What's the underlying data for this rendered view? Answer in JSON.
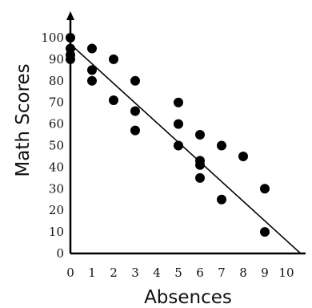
{
  "chart_data": {
    "type": "scatter",
    "xlabel": "Absences",
    "ylabel": "Math Scores",
    "xlim": [
      0,
      10
    ],
    "ylim": [
      0,
      100
    ],
    "x_ticks": [
      0,
      1,
      2,
      3,
      4,
      5,
      6,
      7,
      8,
      9,
      10
    ],
    "y_ticks": [
      0,
      10,
      20,
      30,
      40,
      50,
      60,
      70,
      80,
      90,
      100
    ],
    "grid": false,
    "series": [
      {
        "points": [
          {
            "x": 0,
            "y": 100
          },
          {
            "x": 0,
            "y": 95
          },
          {
            "x": 0,
            "y": 92
          },
          {
            "x": 0,
            "y": 90
          },
          {
            "x": 1,
            "y": 95
          },
          {
            "x": 1,
            "y": 85
          },
          {
            "x": 1,
            "y": 80
          },
          {
            "x": 2,
            "y": 90
          },
          {
            "x": 2,
            "y": 71
          },
          {
            "x": 3,
            "y": 80
          },
          {
            "x": 3,
            "y": 66
          },
          {
            "x": 3,
            "y": 57
          },
          {
            "x": 5,
            "y": 70
          },
          {
            "x": 5,
            "y": 60
          },
          {
            "x": 5,
            "y": 50
          },
          {
            "x": 6,
            "y": 55
          },
          {
            "x": 6,
            "y": 43
          },
          {
            "x": 6,
            "y": 41
          },
          {
            "x": 6,
            "y": 35
          },
          {
            "x": 7,
            "y": 50
          },
          {
            "x": 7,
            "y": 25
          },
          {
            "x": 8,
            "y": 45
          },
          {
            "x": 9,
            "y": 30
          },
          {
            "x": 9,
            "y": 10
          }
        ]
      }
    ],
    "trendline": {
      "start": {
        "x": 0,
        "y": 97
      },
      "end": {
        "x": 10,
        "y": 6
      }
    }
  }
}
